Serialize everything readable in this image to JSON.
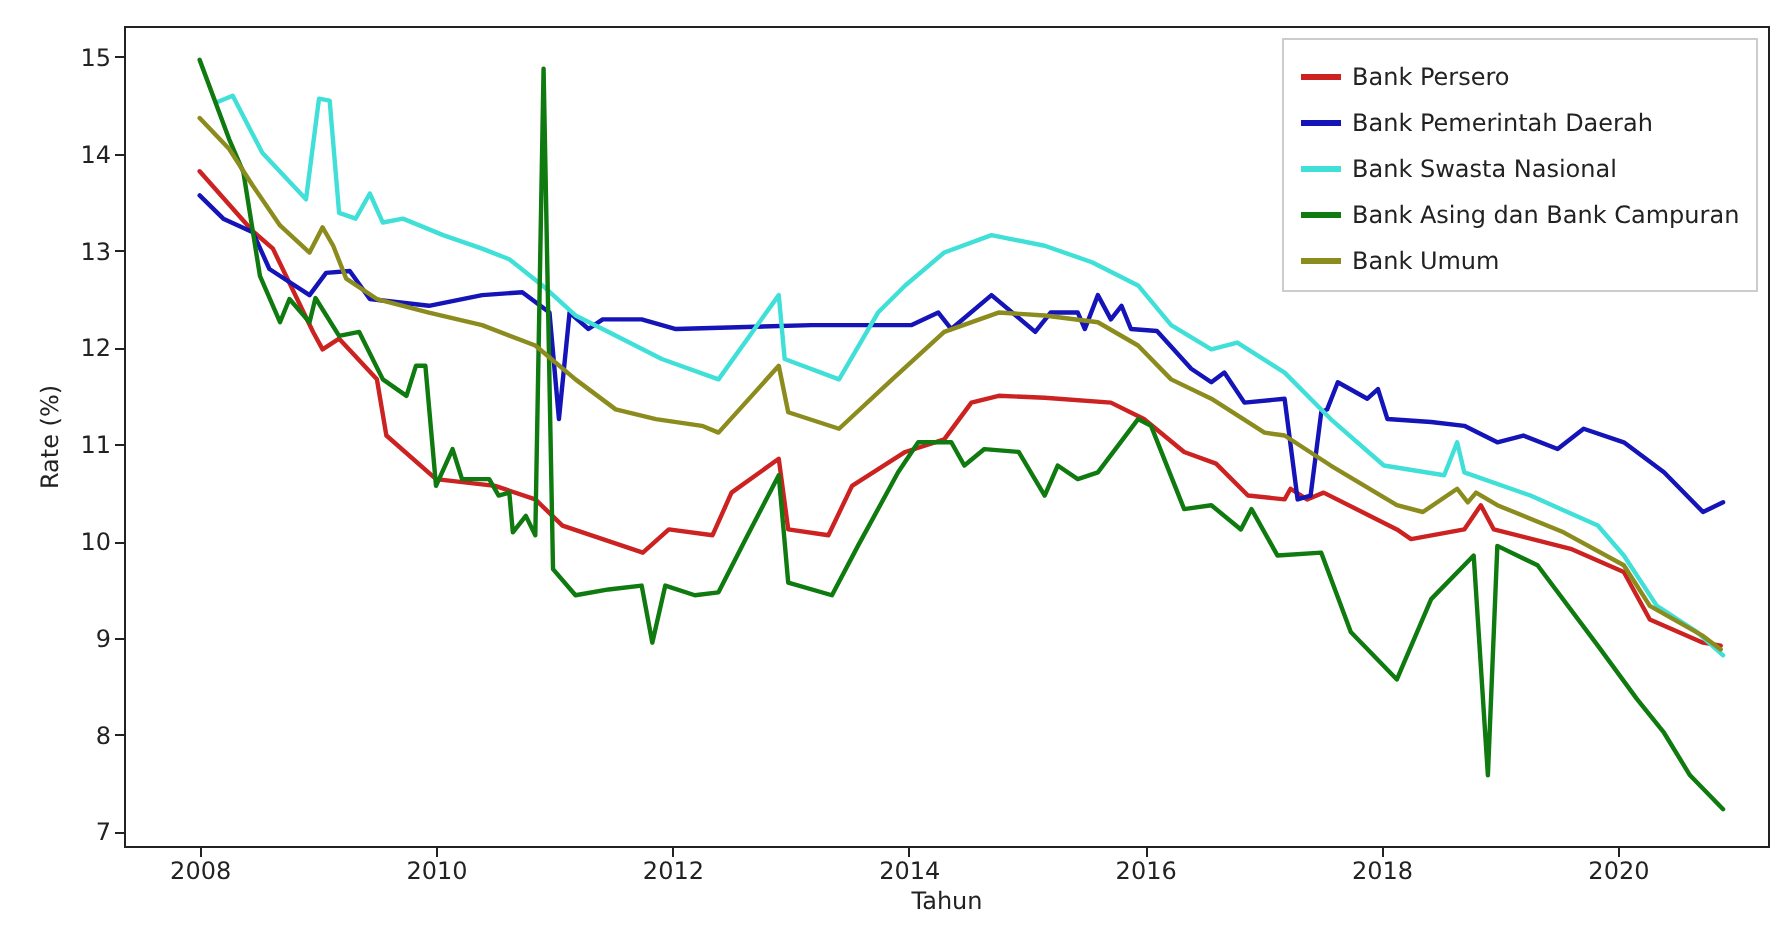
{
  "chart_data": {
    "type": "line",
    "xlabel": "Tahun",
    "ylabel": "Rate (%)",
    "xlim": [
      2007.36,
      2021.27
    ],
    "ylim": [
      6.85,
      15.32
    ],
    "xticks": [
      2008,
      2010,
      2012,
      2014,
      2016,
      2018,
      2020
    ],
    "yticks": [
      7,
      8,
      9,
      10,
      11,
      12,
      13,
      14,
      15
    ],
    "grid": false,
    "legend": "top right",
    "series": [
      {
        "name": "Bank Persero",
        "color": "#cc2222",
        "x": [
          2008.0,
          2008.45,
          2008.62,
          2008.96,
          2009.04,
          2009.18,
          2009.5,
          2009.58,
          2010.0,
          2010.5,
          2010.84,
          2011.07,
          2011.75,
          2011.97,
          2012.34,
          2012.5,
          2012.9,
          2012.98,
          2013.32,
          2013.52,
          2013.97,
          2014.3,
          2014.53,
          2014.76,
          2015.15,
          2015.71,
          2015.99,
          2016.33,
          2016.6,
          2016.87,
          2017.18,
          2017.23,
          2017.37,
          2017.51,
          2018.13,
          2018.25,
          2018.7,
          2018.84,
          2018.95,
          2019.6,
          2020.05,
          2020.27,
          2020.72,
          2020.87
        ],
        "values": [
          13.82,
          13.2,
          13.02,
          12.16,
          11.98,
          12.09,
          11.67,
          11.09,
          10.64,
          10.57,
          10.43,
          10.16,
          9.88,
          10.12,
          10.06,
          10.5,
          10.85,
          10.12,
          10.06,
          10.57,
          10.92,
          11.05,
          11.43,
          11.5,
          11.48,
          11.43,
          11.26,
          10.92,
          10.8,
          10.47,
          10.43,
          10.54,
          10.43,
          10.5,
          10.12,
          10.02,
          10.12,
          10.37,
          10.12,
          9.92,
          9.68,
          9.19,
          8.95,
          8.92
        ]
      },
      {
        "name": "Bank Pemerintah Daerah",
        "color": "#1414b8",
        "x": [
          2008.0,
          2008.2,
          2008.45,
          2008.59,
          2008.93,
          2009.07,
          2009.27,
          2009.44,
          2009.94,
          2010.39,
          2010.73,
          2010.96,
          2011.04,
          2011.13,
          2011.29,
          2011.41,
          2011.74,
          2012.03,
          2013.18,
          2014.02,
          2014.25,
          2014.36,
          2014.7,
          2015.07,
          2015.2,
          2015.43,
          2015.49,
          2015.6,
          2015.71,
          2015.8,
          2015.88,
          2016.1,
          2016.39,
          2016.56,
          2016.67,
          2016.84,
          2017.18,
          2017.29,
          2017.4,
          2017.49,
          2017.54,
          2017.63,
          2017.88,
          2017.97,
          2018.05,
          2018.42,
          2018.7,
          2018.98,
          2019.2,
          2019.49,
          2019.71,
          2020.05,
          2020.39,
          2020.72,
          2020.89
        ],
        "values": [
          13.57,
          13.33,
          13.19,
          12.81,
          12.54,
          12.77,
          12.79,
          12.5,
          12.43,
          12.54,
          12.57,
          12.36,
          11.26,
          12.36,
          12.19,
          12.29,
          12.29,
          12.19,
          12.23,
          12.23,
          12.36,
          12.19,
          12.54,
          12.16,
          12.36,
          12.36,
          12.19,
          12.54,
          12.29,
          12.43,
          12.19,
          12.17,
          11.78,
          11.64,
          11.74,
          11.43,
          11.47,
          10.43,
          10.47,
          11.33,
          11.36,
          11.64,
          11.47,
          11.57,
          11.26,
          11.23,
          11.19,
          11.02,
          11.09,
          10.95,
          11.16,
          11.02,
          10.71,
          10.3,
          10.4
        ]
      },
      {
        "name": "Bank Swasta Nasional",
        "color": "#40e0d8",
        "x": [
          2008.14,
          2008.28,
          2008.53,
          2008.9,
          2009.01,
          2009.1,
          2009.18,
          2009.32,
          2009.44,
          2009.55,
          2009.72,
          2010.06,
          2010.39,
          2010.62,
          2010.9,
          2011.18,
          2011.46,
          2011.91,
          2012.39,
          2012.9,
          2012.95,
          2013.41,
          2013.74,
          2013.97,
          2014.3,
          2014.7,
          2015.15,
          2015.55,
          2015.94,
          2016.22,
          2016.56,
          2016.78,
          2017.18,
          2017.57,
          2018.02,
          2018.53,
          2018.64,
          2018.7,
          2019.26,
          2019.83,
          2020.05,
          2020.33,
          2020.67,
          2020.89
        ],
        "values": [
          14.53,
          14.6,
          14.01,
          13.53,
          14.57,
          14.55,
          13.39,
          13.33,
          13.59,
          13.29,
          13.33,
          13.16,
          13.02,
          12.91,
          12.64,
          12.33,
          12.16,
          11.88,
          11.67,
          12.54,
          11.88,
          11.67,
          12.36,
          12.64,
          12.98,
          13.16,
          13.05,
          12.88,
          12.64,
          12.23,
          11.98,
          12.05,
          11.74,
          11.26,
          10.78,
          10.68,
          11.02,
          10.71,
          10.47,
          10.16,
          9.85,
          9.33,
          9.06,
          8.82
        ]
      },
      {
        "name": "Bank Asing dan Bank Campuran",
        "color": "#0f7a0f",
        "x": [
          2008.0,
          2008.25,
          2008.37,
          2008.51,
          2008.68,
          2008.76,
          2008.93,
          2008.98,
          2009.18,
          2009.35,
          2009.55,
          2009.75,
          2009.83,
          2009.91,
          2010.0,
          2010.14,
          2010.22,
          2010.45,
          2010.53,
          2010.62,
          2010.65,
          2010.76,
          2010.84,
          2010.91,
          2010.99,
          2011.18,
          2011.46,
          2011.74,
          2011.83,
          2011.94,
          2012.19,
          2012.39,
          2012.62,
          2012.9,
          2012.98,
          2013.35,
          2013.57,
          2013.91,
          2014.08,
          2014.36,
          2014.47,
          2014.64,
          2014.93,
          2015.15,
          2015.26,
          2015.43,
          2015.6,
          2015.94,
          2016.05,
          2016.33,
          2016.56,
          2016.81,
          2016.9,
          2017.12,
          2017.49,
          2017.74,
          2018.13,
          2018.42,
          2018.78,
          2018.9,
          2018.98,
          2019.32,
          2019.83,
          2020.16,
          2020.39,
          2020.61,
          2020.89
        ],
        "values": [
          14.97,
          14.15,
          13.81,
          12.74,
          12.26,
          12.5,
          12.26,
          12.51,
          12.12,
          12.16,
          11.67,
          11.5,
          11.81,
          11.81,
          10.57,
          10.95,
          10.64,
          10.64,
          10.47,
          10.5,
          10.09,
          10.26,
          10.06,
          14.88,
          9.71,
          9.44,
          9.5,
          9.54,
          8.95,
          9.54,
          9.44,
          9.47,
          10.02,
          10.68,
          9.57,
          9.44,
          9.95,
          10.71,
          11.02,
          11.02,
          10.78,
          10.95,
          10.92,
          10.47,
          10.78,
          10.64,
          10.71,
          11.26,
          11.19,
          10.33,
          10.37,
          10.12,
          10.33,
          9.85,
          9.88,
          9.06,
          8.57,
          9.4,
          9.85,
          7.58,
          9.95,
          9.75,
          8.92,
          8.37,
          8.02,
          7.58,
          7.23
        ]
      },
      {
        "name": "Bank Umum",
        "color": "#8c8c1e",
        "x": [
          2008.0,
          2008.25,
          2008.45,
          2008.68,
          2008.93,
          2009.04,
          2009.13,
          2009.24,
          2009.5,
          2009.94,
          2010.39,
          2010.84,
          2011.18,
          2011.52,
          2011.86,
          2012.25,
          2012.39,
          2012.9,
          2012.98,
          2013.41,
          2013.86,
          2014.3,
          2014.76,
          2015.15,
          2015.6,
          2015.94,
          2016.22,
          2016.56,
          2017.01,
          2017.18,
          2017.57,
          2018.13,
          2018.35,
          2018.64,
          2018.73,
          2018.8,
          2018.98,
          2019.54,
          2020.05,
          2020.27,
          2020.72,
          2020.87
        ],
        "values": [
          14.37,
          14.05,
          13.67,
          13.26,
          12.98,
          13.24,
          13.05,
          12.71,
          12.5,
          12.36,
          12.23,
          12.02,
          11.67,
          11.36,
          11.26,
          11.19,
          11.12,
          11.81,
          11.33,
          11.16,
          11.67,
          12.16,
          12.36,
          12.33,
          12.26,
          12.02,
          11.67,
          11.47,
          11.12,
          11.09,
          10.78,
          10.37,
          10.3,
          10.54,
          10.4,
          10.5,
          10.37,
          10.09,
          9.75,
          9.33,
          9.02,
          8.88
        ]
      }
    ]
  }
}
